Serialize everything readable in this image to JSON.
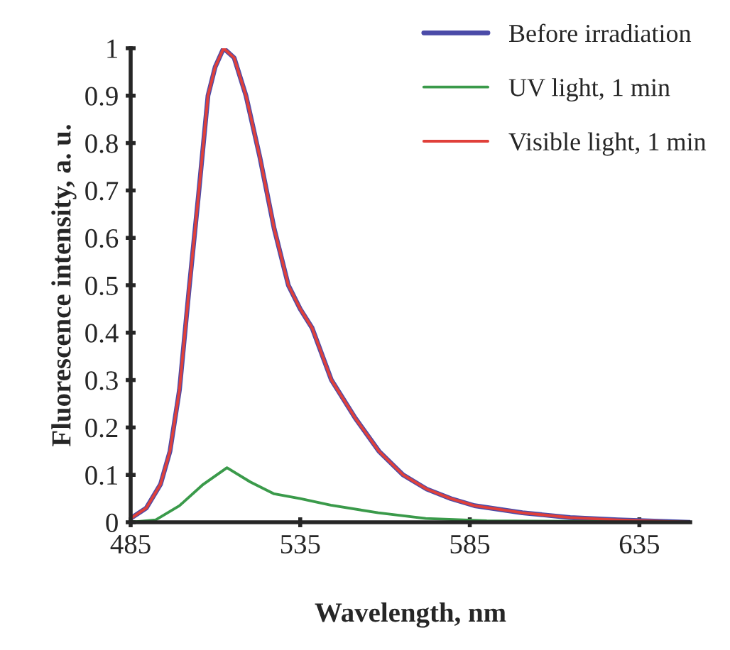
{
  "chart_data": {
    "type": "line",
    "xlabel": "Wavelength, nm",
    "ylabel": "Fluorescence intensity, a. u.",
    "xlim": [
      485,
      650
    ],
    "xticks": [
      485,
      535,
      585,
      635
    ],
    "ylim": [
      0,
      1
    ],
    "yticks": [
      0,
      0.1,
      0.2,
      0.3,
      0.4,
      0.5,
      0.6,
      0.7,
      0.8,
      0.9,
      1
    ],
    "grid": false,
    "legend": "top right",
    "marker": "none",
    "line_style": "solid",
    "series": [
      {
        "name": "Before irradiation",
        "color": "#4b4ba8",
        "x": [
          485.4,
          489.6,
          493.8,
          496.6,
          499.4,
          502.2,
          505.0,
          507.8,
          509.9,
          512.4,
          515.5,
          519.0,
          523.1,
          527.3,
          531.5,
          535.0,
          538.5,
          544.2,
          551.2,
          558.2,
          565.3,
          572.3,
          579.4,
          586.4,
          600.5,
          614.6,
          628.7,
          650
        ],
        "values": [
          0.01,
          0.03,
          0.08,
          0.15,
          0.28,
          0.49,
          0.69,
          0.9,
          0.96,
          1.0,
          0.98,
          0.9,
          0.77,
          0.62,
          0.5,
          0.45,
          0.41,
          0.3,
          0.22,
          0.15,
          0.1,
          0.07,
          0.05,
          0.035,
          0.02,
          0.01,
          0.005,
          0
        ]
      },
      {
        "name": "UV light, 1 min",
        "color": "#3a9a4a",
        "x": [
          485,
          492.4,
          499.4,
          506.4,
          513.4,
          520.3,
          527.3,
          535,
          544,
          558,
          572,
          590,
          650
        ],
        "values": [
          0,
          0.005,
          0.035,
          0.08,
          0.115,
          0.085,
          0.06,
          0.05,
          0.036,
          0.02,
          0.008,
          0.003,
          0
        ]
      },
      {
        "name": "Visible light, 1 min",
        "color": "#e0403a",
        "x": [
          485.4,
          489.6,
          493.8,
          496.6,
          499.4,
          502.2,
          505.0,
          507.8,
          509.9,
          512.4,
          515.5,
          519.0,
          523.1,
          527.3,
          531.5,
          535.0,
          538.5,
          544.2,
          551.2,
          558.2,
          565.3,
          572.3,
          579.4,
          586.4,
          600.5,
          614.6,
          628.7,
          650
        ],
        "values": [
          0.01,
          0.03,
          0.08,
          0.15,
          0.28,
          0.49,
          0.69,
          0.9,
          0.96,
          1.0,
          0.98,
          0.9,
          0.77,
          0.62,
          0.5,
          0.45,
          0.41,
          0.3,
          0.22,
          0.15,
          0.1,
          0.07,
          0.05,
          0.035,
          0.02,
          0.01,
          0.005,
          0
        ]
      }
    ]
  }
}
